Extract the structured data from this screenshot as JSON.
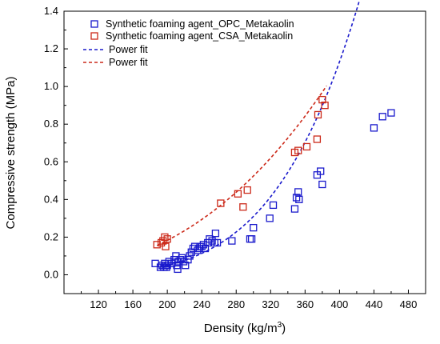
{
  "chart_data": {
    "type": "scatter",
    "xlabel": "Density (kg/m",
    "xlabel_sup": "3",
    "xlabel_end": ")",
    "ylabel": "Compressive strength (MPa)",
    "xlim": [
      80,
      500
    ],
    "ylim": [
      -0.1,
      1.4
    ],
    "x_ticks": [
      120,
      160,
      200,
      240,
      280,
      320,
      360,
      400,
      440,
      480
    ],
    "y_ticks": [
      0.0,
      0.2,
      0.4,
      0.6,
      0.8,
      1.0,
      1.2,
      1.4
    ],
    "x_tick_labels": [
      "120",
      "160",
      "200",
      "240",
      "280",
      "320",
      "360",
      "400",
      "440",
      "480"
    ],
    "y_tick_labels": [
      "0.0",
      "0.2",
      "0.4",
      "0.6",
      "0.8",
      "1.0",
      "1.2",
      "1.4"
    ],
    "grid": false,
    "legend_position": "top-left",
    "series": [
      {
        "name": "Synthetic foaming agent_OPC_Metakaolin",
        "color": "#1a1acc",
        "marker": "open-square",
        "x": [
          186,
          192,
          194,
          196,
          197,
          198,
          199,
          200,
          202,
          205,
          208,
          210,
          211,
          212,
          213,
          215,
          217,
          219,
          221,
          224,
          226,
          228,
          230,
          232,
          235,
          237,
          238,
          240,
          242,
          244,
          247,
          249,
          252,
          255,
          256,
          258,
          275,
          296,
          298,
          300,
          319,
          323,
          348,
          350,
          352,
          353,
          374,
          378,
          380,
          440,
          450,
          460
        ],
        "y": [
          0.06,
          0.04,
          0.05,
          0.04,
          0.06,
          0.05,
          0.04,
          0.05,
          0.07,
          0.06,
          0.08,
          0.1,
          0.05,
          0.03,
          0.07,
          0.08,
          0.09,
          0.07,
          0.05,
          0.08,
          0.1,
          0.12,
          0.14,
          0.15,
          0.13,
          0.14,
          0.15,
          0.15,
          0.16,
          0.14,
          0.17,
          0.19,
          0.18,
          0.17,
          0.22,
          0.17,
          0.18,
          0.19,
          0.19,
          0.25,
          0.3,
          0.37,
          0.35,
          0.41,
          0.44,
          0.4,
          0.53,
          0.55,
          0.48,
          0.78,
          0.84,
          0.86
        ]
      },
      {
        "name": "Synthetic foaming agent_CSA_Metakaolin",
        "color": "#cc2a1a",
        "marker": "open-square",
        "x": [
          188,
          193,
          195,
          197,
          198,
          200,
          262,
          282,
          288,
          293,
          348,
          352,
          362,
          374,
          375,
          380,
          383
        ],
        "y": [
          0.16,
          0.17,
          0.18,
          0.2,
          0.15,
          0.19,
          0.38,
          0.43,
          0.36,
          0.45,
          0.65,
          0.66,
          0.68,
          0.72,
          0.85,
          0.93,
          0.9
        ]
      },
      {
        "name": "Power fit",
        "color": "#1a1acc",
        "type": "fit",
        "x_range": [
          190,
          460
        ],
        "coef_a": 0.05,
        "coef_b": 4.5,
        "x_ref": 200
      },
      {
        "name": "Power fit",
        "color": "#cc2a1a",
        "type": "fit",
        "x_range": [
          188,
          385
        ],
        "coef_a": 0.16,
        "coef_b": 2.6,
        "x_ref": 190
      }
    ]
  }
}
